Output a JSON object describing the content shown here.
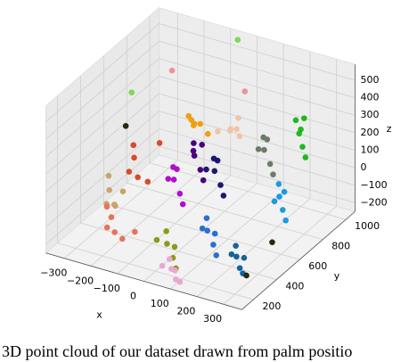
{
  "chart_data": {
    "type": "scatter3d",
    "caption": "3D point cloud of our dataset drawn from palm positio",
    "xlabel": "x",
    "ylabel": "y",
    "zlabel": "z",
    "xlim": [
      -370,
      370
    ],
    "ylim": [
      100,
      1080
    ],
    "zlim": [
      -250,
      590
    ],
    "xticks": [
      {
        "value": -300,
        "label": "−300"
      },
      {
        "value": -200,
        "label": "−200"
      },
      {
        "value": -100,
        "label": "−100"
      },
      0,
      100,
      200,
      300
    ],
    "yticks": [
      200,
      400,
      600,
      800,
      1000
    ],
    "zticks": [
      {
        "value": -200,
        "label": "−200"
      },
      {
        "value": -100,
        "label": "−100"
      },
      0,
      100,
      200,
      300,
      400,
      500
    ],
    "grid": true,
    "series": [
      {
        "color": "#d84a2b",
        "x": [
          -220,
          -180,
          -240,
          -160,
          -200,
          -150
        ],
        "y": [
          520,
          460,
          560,
          500,
          430,
          580
        ],
        "z": [
          120,
          60,
          160,
          20,
          100,
          200
        ]
      },
      {
        "color": "#c9a46a",
        "x": [
          -270,
          -230,
          -290,
          -250,
          -210,
          -260
        ],
        "y": [
          420,
          380,
          460,
          350,
          400,
          440
        ],
        "z": [
          -30,
          -80,
          20,
          -60,
          0,
          -120
        ]
      },
      {
        "color": "#e8735a",
        "x": [
          -210,
          -180,
          -240,
          -160,
          -200,
          -130
        ],
        "y": [
          300,
          260,
          330,
          280,
          240,
          320
        ],
        "z": [
          -90,
          -140,
          -60,
          -180,
          -110,
          -150
        ]
      },
      {
        "color": "#eea10f",
        "x": [
          -80,
          -40,
          -100,
          -20,
          -60,
          -110
        ],
        "y": [
          720,
          680,
          760,
          700,
          650,
          740
        ],
        "z": [
          260,
          300,
          220,
          240,
          330,
          280
        ]
      },
      {
        "color": "#b10ed0",
        "x": [
          -70,
          -30,
          -90,
          -10,
          -50,
          -100
        ],
        "y": [
          520,
          480,
          560,
          460,
          500,
          540
        ],
        "z": [
          60,
          20,
          100,
          -20,
          140,
          40
        ]
      },
      {
        "color": "#1b1774",
        "x": [
          40,
          80,
          20,
          100,
          60,
          0
        ],
        "y": [
          620,
          580,
          660,
          560,
          600,
          640
        ],
        "z": [
          100,
          60,
          140,
          20,
          180,
          80
        ]
      },
      {
        "color": "#4a0080",
        "x": [
          -10,
          30,
          -30,
          50,
          10,
          -40
        ],
        "y": [
          560,
          520,
          600,
          500,
          580,
          620
        ],
        "z": [
          200,
          160,
          240,
          120,
          260,
          180
        ]
      },
      {
        "color": "#6c7b68",
        "x": [
          140,
          180,
          120,
          200,
          160,
          110
        ],
        "y": [
          820,
          780,
          860,
          760,
          800,
          840
        ],
        "z": [
          150,
          110,
          190,
          70,
          230,
          130
        ]
      },
      {
        "color": "#1fb81f",
        "x": [
          220,
          250,
          190,
          270,
          230,
          200
        ],
        "y": [
          940,
          900,
          980,
          880,
          960,
          1000
        ],
        "z": [
          210,
          170,
          250,
          130,
          290,
          190
        ]
      },
      {
        "color": "#1d9ae0",
        "x": [
          250,
          280,
          230,
          300,
          260,
          240
        ],
        "y": [
          700,
          660,
          740,
          640,
          720,
          680
        ],
        "z": [
          0,
          -40,
          40,
          -80,
          20,
          -20
        ]
      },
      {
        "color": "#2b6fd0",
        "x": [
          100,
          140,
          80,
          160,
          120,
          90
        ],
        "y": [
          420,
          380,
          460,
          360,
          440,
          400
        ],
        "z": [
          -100,
          -140,
          -60,
          -180,
          -120,
          -80
        ]
      },
      {
        "color": "#8c9a18",
        "x": [
          0,
          40,
          -20,
          60,
          20,
          -30
        ],
        "y": [
          300,
          260,
          340,
          240,
          320,
          280
        ],
        "z": [
          -150,
          -190,
          -110,
          -230,
          -170,
          -130
        ]
      },
      {
        "color": "#17639a",
        "x": [
          210,
          240,
          190,
          260,
          230,
          200
        ],
        "y": [
          420,
          380,
          460,
          360,
          440,
          400
        ],
        "z": [
          -200,
          -230,
          -170,
          -240,
          -210,
          -180
        ]
      },
      {
        "color": "#e7a8d2",
        "x": [
          60,
          90,
          40,
          110,
          70,
          30
        ],
        "y": [
          200,
          170,
          230,
          160,
          210,
          190
        ],
        "z": [
          -210,
          -240,
          -180,
          -240,
          -220,
          -200
        ]
      },
      {
        "color": "#f1c3a6",
        "x": [
          40,
          80,
          20,
          100,
          60,
          0
        ],
        "y": [
          760,
          720,
          800,
          700,
          780,
          740
        ],
        "z": [
          260,
          300,
          220,
          280,
          320,
          240
        ]
      },
      {
        "color": "#7ed957",
        "x": [
          -360,
          -60
        ],
        "y": [
          820,
          1050
        ],
        "z": [
          260,
          560
        ]
      },
      {
        "color": "#f08fa0",
        "x": [
          -260,
          -20
        ],
        "y": [
          940,
          1020
        ],
        "z": [
          360,
          300
        ]
      },
      {
        "color": "#2a2810",
        "x": [
          300,
          310,
          -330
        ],
        "y": [
          300,
          500,
          700
        ],
        "z": [
          -200,
          -120,
          150
        ]
      }
    ]
  }
}
